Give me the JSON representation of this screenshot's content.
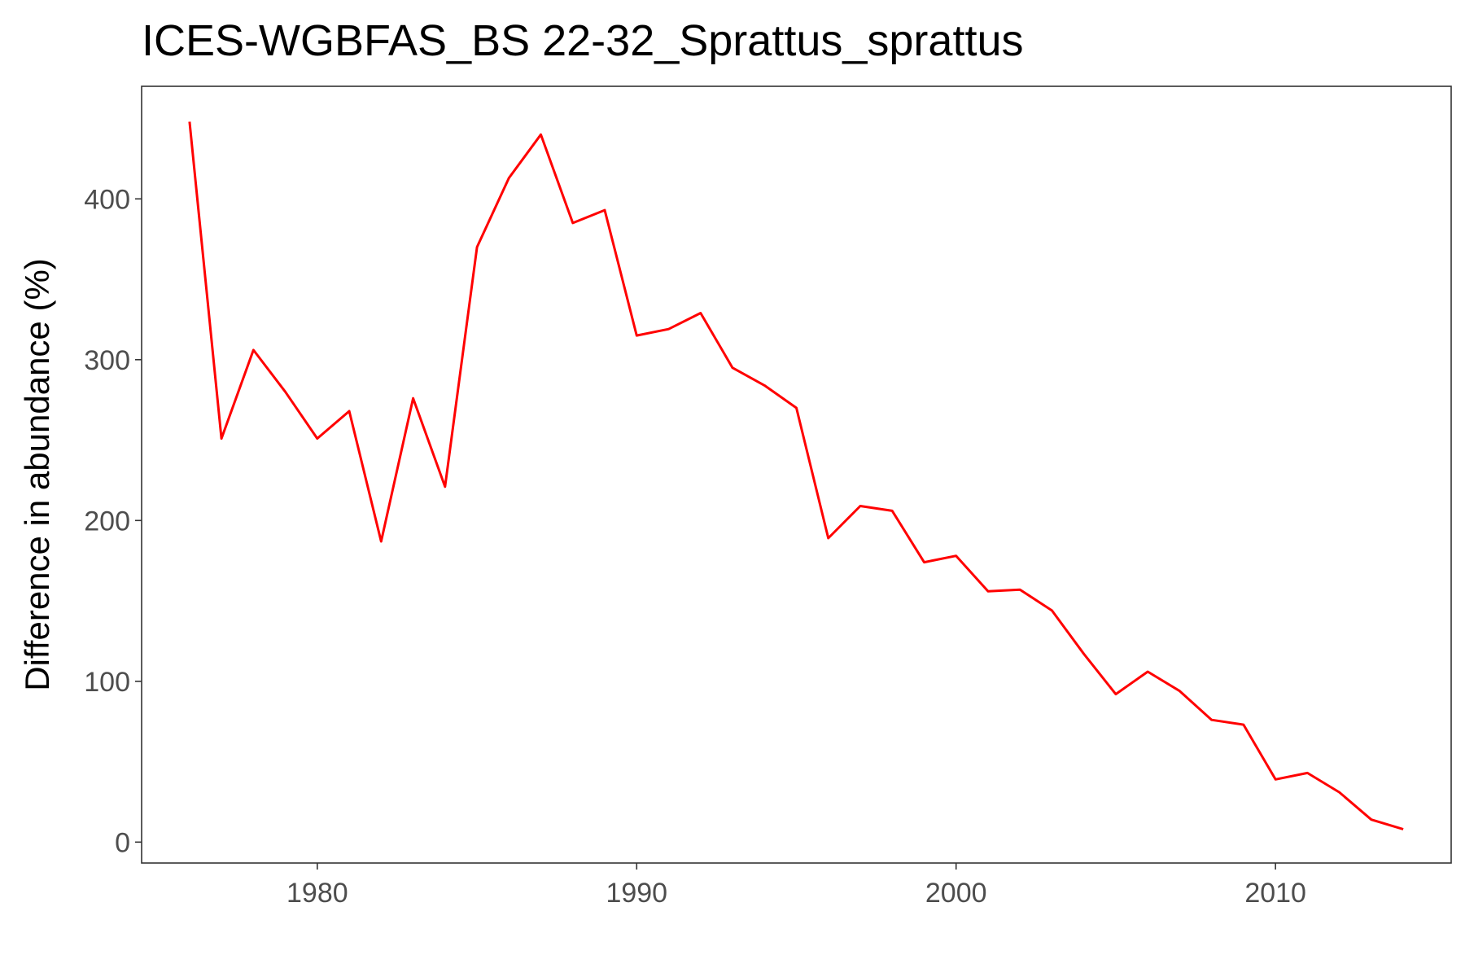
{
  "chart_data": {
    "type": "line",
    "title": "ICES-WGBFAS_BS 22-32_Sprattus_sprattus",
    "xlabel": "",
    "ylabel": "Difference in abundance (%)",
    "xlim": [
      1974.5,
      2015.5
    ],
    "ylim": [
      -13,
      470
    ],
    "xticks": [
      1980,
      1990,
      2000,
      2010
    ],
    "yticks": [
      0,
      100,
      200,
      300,
      400
    ],
    "grid": false,
    "legend": "none",
    "series": [
      {
        "color": "#ff0000",
        "x": [
          1976,
          1977,
          1978,
          1979,
          1980,
          1981,
          1982,
          1983,
          1984,
          1985,
          1986,
          1987,
          1988,
          1989,
          1990,
          1991,
          1992,
          1993,
          1994,
          1995,
          1996,
          1997,
          1998,
          1999,
          2000,
          2001,
          2002,
          2003,
          2004,
          2005,
          2006,
          2007,
          2008,
          2009,
          2010,
          2011,
          2012,
          2013,
          2014
        ],
        "y": [
          448,
          251,
          306,
          280,
          251,
          268,
          187,
          276,
          221,
          370,
          413,
          440,
          385,
          393,
          315,
          319,
          329,
          295,
          284,
          270,
          189,
          209,
          206,
          174,
          178,
          156,
          157,
          144,
          117,
          92,
          106,
          94,
          76,
          73,
          39,
          43,
          31,
          14,
          8
        ]
      }
    ]
  }
}
